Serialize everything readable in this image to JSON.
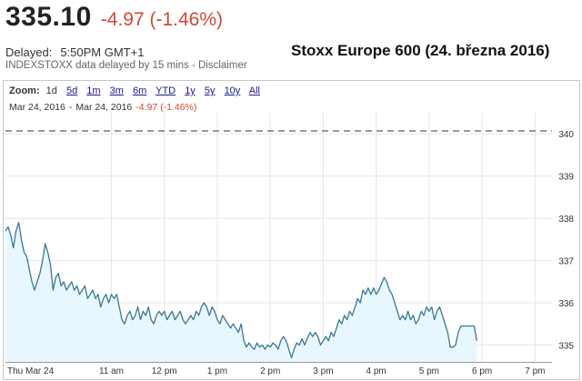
{
  "quote": {
    "price": "335.10",
    "change": "-4.97 (-1.46%)",
    "delayed_label": "Delayed:",
    "delayed_time": "5:50PM GMT+1",
    "source_text": "INDEXSTOXX data delayed by 15 mins - ",
    "disclaimer_link": "Disclaimer"
  },
  "caption": "Stoxx Europe 600 (24. března 2016)",
  "zoom": {
    "label": "Zoom:",
    "options": [
      "1d",
      "5d",
      "1m",
      "3m",
      "6m",
      "YTD",
      "1y",
      "5y",
      "10y",
      "All"
    ],
    "active": "1d"
  },
  "range": {
    "start": "Mar 24, 2016",
    "separator": "-",
    "end": "Mar 24, 2016",
    "change": "-4.97 (-1.46%)"
  },
  "colors": {
    "line": "#3b7893",
    "fill": "#e8f6fd",
    "change_red": "#d14836",
    "grid": "#e6e6e6"
  },
  "chart_data": {
    "type": "area",
    "title": "",
    "xlabel": "",
    "ylabel": "",
    "x_domain": [
      9.0,
      19.32
    ],
    "ylim": [
      334.6,
      340.5
    ],
    "y_ticks": [
      335,
      336,
      337,
      338,
      339,
      340
    ],
    "x_ticks": [
      {
        "label": "Thu Mar 24",
        "x": 9.0
      },
      {
        "label": "11 am",
        "x": 11
      },
      {
        "label": "12 pm",
        "x": 12
      },
      {
        "label": "1 pm",
        "x": 13
      },
      {
        "label": "2 pm",
        "x": 14
      },
      {
        "label": "3 pm",
        "x": 15
      },
      {
        "label": "4 pm",
        "x": 16
      },
      {
        "label": "5 pm",
        "x": 17
      },
      {
        "label": "6 pm",
        "x": 18
      },
      {
        "label": "7 pm",
        "x": 19
      }
    ],
    "previous_close": 340.07,
    "grid": true,
    "series": [
      {
        "points": [
          [
            9.0,
            337.7
          ],
          [
            9.05,
            337.8
          ],
          [
            9.1,
            337.6
          ],
          [
            9.15,
            337.3
          ],
          [
            9.2,
            337.7
          ],
          [
            9.25,
            337.9
          ],
          [
            9.3,
            337.5
          ],
          [
            9.35,
            337.2
          ],
          [
            9.4,
            337.1
          ],
          [
            9.45,
            336.8
          ],
          [
            9.5,
            336.5
          ],
          [
            9.55,
            336.3
          ],
          [
            9.6,
            336.5
          ],
          [
            9.65,
            336.7
          ],
          [
            9.7,
            337.0
          ],
          [
            9.75,
            337.4
          ],
          [
            9.8,
            337.2
          ],
          [
            9.85,
            336.9
          ],
          [
            9.9,
            336.3
          ],
          [
            9.95,
            336.6
          ],
          [
            10.0,
            336.7
          ],
          [
            10.05,
            336.4
          ],
          [
            10.1,
            336.5
          ],
          [
            10.15,
            336.3
          ],
          [
            10.2,
            336.4
          ],
          [
            10.25,
            336.5
          ],
          [
            10.3,
            336.3
          ],
          [
            10.35,
            336.4
          ],
          [
            10.4,
            336.2
          ],
          [
            10.45,
            336.3
          ],
          [
            10.5,
            336.4
          ],
          [
            10.55,
            336.1
          ],
          [
            10.6,
            336.2
          ],
          [
            10.65,
            336.3
          ],
          [
            10.7,
            336.1
          ],
          [
            10.75,
            336.2
          ],
          [
            10.8,
            335.9
          ],
          [
            10.85,
            336.1
          ],
          [
            10.9,
            336.2
          ],
          [
            10.95,
            336.0
          ],
          [
            11.0,
            336.2
          ],
          [
            11.05,
            336.1
          ],
          [
            11.1,
            336.2
          ],
          [
            11.15,
            335.9
          ],
          [
            11.2,
            335.6
          ],
          [
            11.25,
            335.5
          ],
          [
            11.3,
            335.7
          ],
          [
            11.35,
            335.8
          ],
          [
            11.4,
            335.6
          ],
          [
            11.45,
            335.7
          ],
          [
            11.5,
            335.9
          ],
          [
            11.55,
            335.6
          ],
          [
            11.6,
            335.8
          ],
          [
            11.65,
            335.7
          ],
          [
            11.7,
            335.9
          ],
          [
            11.75,
            335.6
          ],
          [
            11.8,
            335.5
          ],
          [
            11.85,
            335.7
          ],
          [
            11.9,
            335.8
          ],
          [
            11.95,
            335.7
          ],
          [
            12.0,
            335.8
          ],
          [
            12.05,
            335.6
          ],
          [
            12.1,
            335.7
          ],
          [
            12.15,
            335.8
          ],
          [
            12.2,
            335.6
          ],
          [
            12.25,
            335.7
          ],
          [
            12.3,
            335.8
          ],
          [
            12.35,
            335.6
          ],
          [
            12.4,
            335.5
          ],
          [
            12.45,
            335.6
          ],
          [
            12.5,
            335.7
          ],
          [
            12.55,
            335.6
          ],
          [
            12.6,
            335.8
          ],
          [
            12.65,
            335.7
          ],
          [
            12.7,
            335.9
          ],
          [
            12.75,
            336.0
          ],
          [
            12.8,
            335.9
          ],
          [
            12.85,
            335.7
          ],
          [
            12.9,
            335.9
          ],
          [
            12.95,
            335.8
          ],
          [
            13.0,
            335.6
          ],
          [
            13.05,
            335.5
          ],
          [
            13.1,
            335.7
          ],
          [
            13.15,
            335.6
          ],
          [
            13.2,
            335.5
          ],
          [
            13.25,
            335.4
          ],
          [
            13.3,
            335.5
          ],
          [
            13.35,
            335.4
          ],
          [
            13.4,
            335.3
          ],
          [
            13.45,
            335.5
          ],
          [
            13.5,
            335.1
          ],
          [
            13.55,
            334.95
          ],
          [
            13.6,
            335.05
          ],
          [
            13.65,
            334.95
          ],
          [
            13.7,
            334.9
          ],
          [
            13.75,
            335.05
          ],
          [
            13.8,
            334.95
          ],
          [
            13.85,
            335.0
          ],
          [
            13.9,
            334.9
          ],
          [
            13.95,
            335.0
          ],
          [
            14.0,
            334.95
          ],
          [
            14.05,
            335.05
          ],
          [
            14.1,
            335.0
          ],
          [
            14.15,
            334.9
          ],
          [
            14.2,
            335.1
          ],
          [
            14.25,
            335.2
          ],
          [
            14.3,
            335.1
          ],
          [
            14.35,
            334.9
          ],
          [
            14.4,
            334.7
          ],
          [
            14.45,
            334.9
          ],
          [
            14.5,
            335.05
          ],
          [
            14.55,
            335.0
          ],
          [
            14.6,
            335.15
          ],
          [
            14.65,
            335.0
          ],
          [
            14.7,
            335.15
          ],
          [
            14.75,
            335.3
          ],
          [
            14.8,
            335.2
          ],
          [
            14.85,
            335.3
          ],
          [
            14.9,
            335.2
          ],
          [
            14.95,
            335.0
          ],
          [
            15.0,
            335.1
          ],
          [
            15.05,
            335.2
          ],
          [
            15.1,
            335.1
          ],
          [
            15.15,
            335.3
          ],
          [
            15.2,
            335.2
          ],
          [
            15.25,
            335.4
          ],
          [
            15.3,
            335.6
          ],
          [
            15.35,
            335.5
          ],
          [
            15.4,
            335.7
          ],
          [
            15.45,
            335.6
          ],
          [
            15.5,
            335.8
          ],
          [
            15.55,
            335.7
          ],
          [
            15.6,
            335.9
          ],
          [
            15.65,
            336.1
          ],
          [
            15.7,
            336.0
          ],
          [
            15.75,
            336.3
          ],
          [
            15.8,
            336.2
          ],
          [
            15.85,
            336.35
          ],
          [
            15.9,
            336.2
          ],
          [
            15.95,
            336.35
          ],
          [
            16.0,
            336.2
          ],
          [
            16.05,
            336.3
          ],
          [
            16.1,
            336.45
          ],
          [
            16.15,
            336.6
          ],
          [
            16.2,
            336.5
          ],
          [
            16.25,
            336.3
          ],
          [
            16.3,
            336.2
          ],
          [
            16.35,
            336.0
          ],
          [
            16.4,
            335.8
          ],
          [
            16.45,
            335.6
          ],
          [
            16.5,
            335.7
          ],
          [
            16.55,
            335.6
          ],
          [
            16.6,
            335.8
          ],
          [
            16.65,
            335.6
          ],
          [
            16.7,
            335.7
          ],
          [
            16.75,
            335.5
          ],
          [
            16.8,
            335.6
          ],
          [
            16.85,
            335.8
          ],
          [
            16.9,
            335.7
          ],
          [
            16.95,
            335.9
          ],
          [
            17.0,
            335.8
          ],
          [
            17.05,
            335.9
          ],
          [
            17.1,
            335.6
          ],
          [
            17.15,
            335.8
          ],
          [
            17.2,
            335.9
          ],
          [
            17.25,
            335.7
          ],
          [
            17.3,
            335.5
          ],
          [
            17.35,
            335.3
          ],
          [
            17.4,
            334.95
          ],
          [
            17.45,
            334.95
          ],
          [
            17.5,
            335.0
          ],
          [
            17.55,
            335.3
          ],
          [
            17.6,
            335.45
          ],
          [
            17.65,
            335.45
          ],
          [
            17.7,
            335.45
          ],
          [
            17.75,
            335.45
          ],
          [
            17.8,
            335.45
          ],
          [
            17.85,
            335.45
          ],
          [
            17.9,
            335.1
          ]
        ]
      }
    ]
  }
}
